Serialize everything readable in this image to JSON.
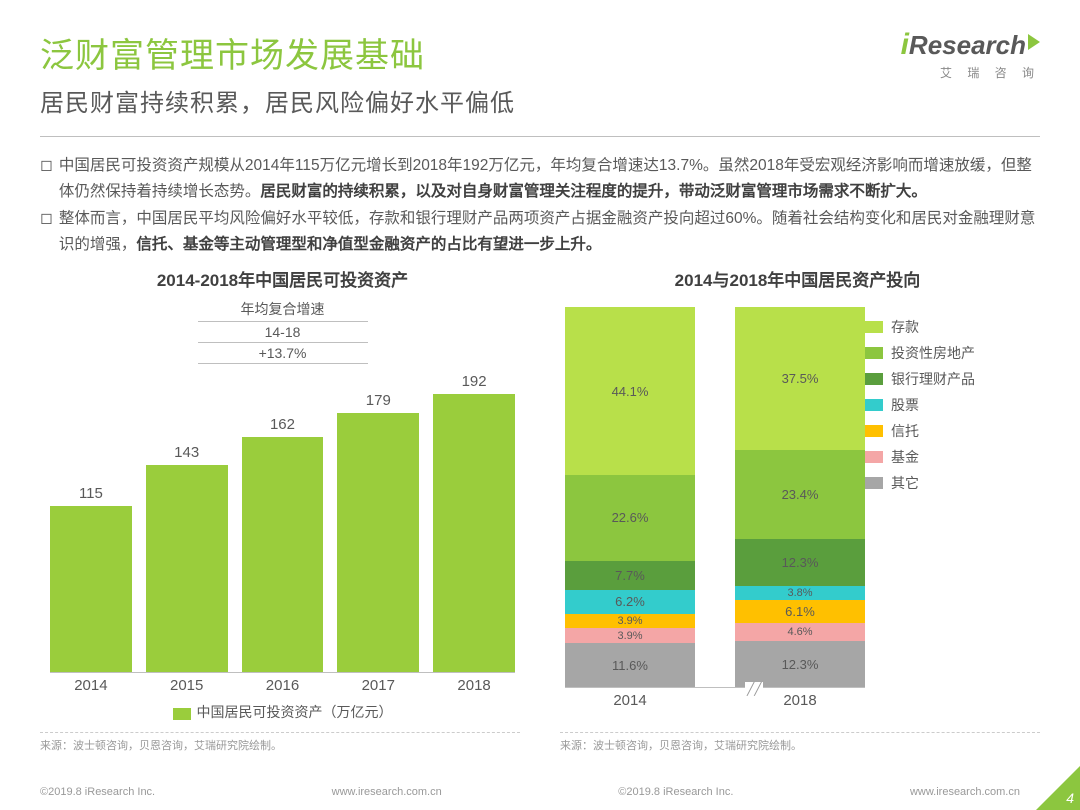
{
  "logo": {
    "brand": "Research",
    "sub": "艾 瑞 咨 询"
  },
  "title": "泛财富管理市场发展基础",
  "subtitle": "居民财富持续积累，居民风险偏好水平偏低",
  "paragraphs": [
    {
      "pre": "中国居民可投资资产规模从2014年115万亿元增长到2018年192万亿元，年均复合增速达13.7%。虽然2018年受宏观经济影响而增速放缓，但整体仍然保持着持续增长态势。",
      "bold": "居民财富的持续积累，以及对自身财富管理关注程度的提升，带动泛财富管理市场需求不断扩大。",
      "post": ""
    },
    {
      "pre": "整体而言，中国居民平均风险偏好水平较低，存款和银行理财产品两项资产占据金融资产投向超过60%。随着社会结构变化和居民对金融理财意识的增强，",
      "bold": "信托、基金等主动管理型和净值型金融资产的占比有望进一步上升。",
      "post": ""
    }
  ],
  "bar_chart": {
    "title": "2014-2018年中国居民可投资资产",
    "cagr": {
      "h": "年均复合增速",
      "period": "14-18",
      "value": "+13.7%"
    },
    "type": "bar",
    "categories": [
      "2014",
      "2015",
      "2016",
      "2017",
      "2018"
    ],
    "values": [
      115,
      143,
      162,
      179,
      192
    ],
    "max": 200,
    "bar_color": "#9acd3c",
    "legend_label": "中国居民可投资资产（万亿元）"
  },
  "stack_chart": {
    "title": "2014与2018年中国居民资产投向",
    "type": "stacked-bar-100",
    "years": [
      "2014",
      "2018"
    ],
    "series": [
      {
        "name": "其它",
        "color": "#a6a6a6",
        "vals": [
          11.6,
          12.3
        ]
      },
      {
        "name": "基金",
        "color": "#f4a6a6",
        "vals": [
          3.9,
          4.6
        ]
      },
      {
        "name": "信托",
        "color": "#ffc000",
        "vals": [
          3.9,
          6.1
        ]
      },
      {
        "name": "股票",
        "color": "#33cccc",
        "vals": [
          6.2,
          3.8
        ]
      },
      {
        "name": "银行理财产品",
        "color": "#5a9e3d",
        "vals": [
          7.7,
          12.3
        ]
      },
      {
        "name": "投资性房地产",
        "color": "#8cc63f",
        "vals": [
          22.6,
          23.4
        ]
      },
      {
        "name": "存款",
        "color": "#b8e04a",
        "vals": [
          44.1,
          37.5
        ]
      }
    ],
    "legend_order": [
      "存款",
      "投资性房地产",
      "银行理财产品",
      "股票",
      "信托",
      "基金",
      "其它"
    ]
  },
  "source_left": "来源：波士顿咨询，贝恩咨询，艾瑞研究院绘制。",
  "source_right": "来源：波士顿咨询，贝恩咨询，艾瑞研究院绘制。",
  "footer": {
    "copy": "©2019.8 iResearch Inc.",
    "url": "www.iresearch.com.cn",
    "page": "4"
  }
}
